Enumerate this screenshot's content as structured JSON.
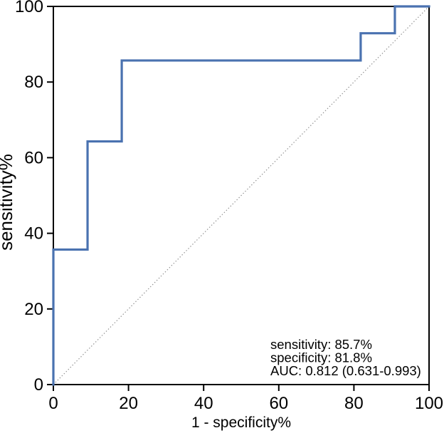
{
  "chart_data": {
    "type": "line",
    "subtype": "roc_step_curve",
    "title": "",
    "xlabel": "1 - specificity%",
    "ylabel": "sensitivity%",
    "xlim": [
      0,
      100
    ],
    "ylim": [
      0,
      100
    ],
    "x_ticks": [
      0,
      20,
      40,
      60,
      80,
      100
    ],
    "y_ticks": [
      0,
      20,
      40,
      60,
      80,
      100
    ],
    "grid": false,
    "legend": "none",
    "series": [
      {
        "name": "ROC curve",
        "role": "roc",
        "style": "solid",
        "color": "#4a72b0",
        "points": [
          [
            0,
            0
          ],
          [
            0,
            35.7
          ],
          [
            9.1,
            35.7
          ],
          [
            9.1,
            64.3
          ],
          [
            18.2,
            64.3
          ],
          [
            18.2,
            85.7
          ],
          [
            81.8,
            85.7
          ],
          [
            81.8,
            92.9
          ],
          [
            90.9,
            92.9
          ],
          [
            90.9,
            100
          ],
          [
            100,
            100
          ]
        ]
      },
      {
        "name": "chance diagonal",
        "role": "reference",
        "style": "dotted",
        "color": "#8f8f8f",
        "points": [
          [
            0,
            0
          ],
          [
            100,
            100
          ]
        ]
      }
    ],
    "annotation": {
      "lines": [
        "sensitivity: 85.7%",
        "specificity: 81.8%",
        "AUC: 0.812 (0.631-0.993)"
      ]
    }
  },
  "colors": {
    "axis": "#000000",
    "text": "#000000",
    "background": "#ffffff",
    "curve": "#4a72b0",
    "diagonal": "#8f8f8f"
  }
}
